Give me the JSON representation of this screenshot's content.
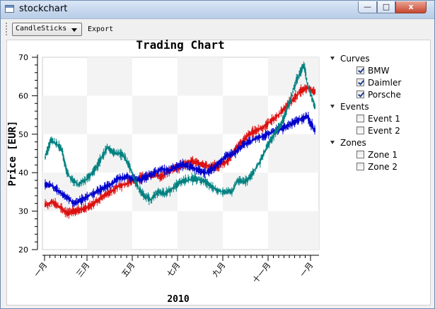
{
  "window": {
    "title": "stockchart"
  },
  "window_buttons": {
    "minimize": "—",
    "maximize": "□",
    "close": "x"
  },
  "toolbar": {
    "combo_value": "CandleSticks",
    "export_label": "Export"
  },
  "legend": {
    "groups": [
      {
        "label": "Curves",
        "items": [
          {
            "label": "BMW",
            "checked": true
          },
          {
            "label": "Daimler",
            "checked": true
          },
          {
            "label": "Porsche",
            "checked": true
          }
        ]
      },
      {
        "label": "Events",
        "items": [
          {
            "label": "Event 1",
            "checked": false
          },
          {
            "label": "Event 2",
            "checked": false
          }
        ]
      },
      {
        "label": "Zones",
        "items": [
          {
            "label": "Zone 1",
            "checked": false
          },
          {
            "label": "Zone 2",
            "checked": false
          }
        ]
      }
    ]
  },
  "chart_data": {
    "type": "candlestick",
    "title": "Trading Chart",
    "ylabel": "Price [EUR]",
    "xlabel": "2010",
    "ylim": [
      20,
      70
    ],
    "yticks": [
      20,
      30,
      40,
      50,
      60,
      70
    ],
    "xticks": [
      "一月",
      "三月",
      "五月",
      "七月",
      "九月",
      "十一月",
      "一月"
    ],
    "grid": "checkerboard",
    "series": [
      {
        "name": "BMW",
        "color": "#dd1111",
        "points": [
          [
            0,
            31.5
          ],
          [
            4,
            32.5
          ],
          [
            8,
            31
          ],
          [
            12,
            29.5
          ],
          [
            16,
            30
          ],
          [
            20,
            30.5
          ],
          [
            24,
            31
          ],
          [
            28,
            32.5
          ],
          [
            32,
            34
          ],
          [
            36,
            35
          ],
          [
            40,
            36.5
          ],
          [
            44,
            37
          ],
          [
            48,
            38
          ],
          [
            52,
            38.5
          ],
          [
            56,
            39
          ],
          [
            60,
            39.5
          ],
          [
            64,
            39
          ],
          [
            68,
            40.5
          ],
          [
            72,
            41
          ],
          [
            76,
            42
          ],
          [
            80,
            43
          ],
          [
            84,
            42.5
          ],
          [
            88,
            42
          ],
          [
            92,
            41.5
          ],
          [
            96,
            42
          ],
          [
            100,
            43
          ],
          [
            104,
            46
          ],
          [
            108,
            48
          ],
          [
            112,
            50
          ],
          [
            116,
            51
          ],
          [
            120,
            52
          ],
          [
            124,
            53.5
          ],
          [
            128,
            55
          ],
          [
            132,
            57
          ],
          [
            136,
            59
          ],
          [
            140,
            61
          ],
          [
            144,
            62
          ],
          [
            148,
            61
          ]
        ]
      },
      {
        "name": "Daimler",
        "color": "#0000cc",
        "points": [
          [
            0,
            37
          ],
          [
            4,
            36.5
          ],
          [
            8,
            35
          ],
          [
            12,
            33.5
          ],
          [
            16,
            32
          ],
          [
            20,
            33
          ],
          [
            24,
            34
          ],
          [
            28,
            35
          ],
          [
            32,
            36
          ],
          [
            36,
            37
          ],
          [
            40,
            38.5
          ],
          [
            44,
            39
          ],
          [
            48,
            38.5
          ],
          [
            52,
            38
          ],
          [
            56,
            39
          ],
          [
            60,
            40
          ],
          [
            64,
            41
          ],
          [
            68,
            40.5
          ],
          [
            72,
            41.5
          ],
          [
            76,
            42
          ],
          [
            80,
            41.5
          ],
          [
            84,
            40.5
          ],
          [
            88,
            40
          ],
          [
            92,
            41
          ],
          [
            96,
            43
          ],
          [
            100,
            44.5
          ],
          [
            104,
            45
          ],
          [
            108,
            47
          ],
          [
            112,
            48
          ],
          [
            116,
            49
          ],
          [
            120,
            49.5
          ],
          [
            124,
            50.5
          ],
          [
            128,
            51
          ],
          [
            132,
            52
          ],
          [
            136,
            53
          ],
          [
            140,
            54
          ],
          [
            144,
            54.5
          ],
          [
            148,
            51
          ]
        ]
      },
      {
        "name": "Porsche",
        "color": "#008080",
        "points": [
          [
            0,
            44
          ],
          [
            3,
            48.5
          ],
          [
            6,
            47.5
          ],
          [
            9,
            46
          ],
          [
            12,
            40
          ],
          [
            15,
            38
          ],
          [
            18,
            37
          ],
          [
            22,
            38
          ],
          [
            26,
            40
          ],
          [
            30,
            43
          ],
          [
            34,
            46.5
          ],
          [
            38,
            45
          ],
          [
            42,
            45
          ],
          [
            46,
            42
          ],
          [
            50,
            37
          ],
          [
            54,
            34
          ],
          [
            58,
            33
          ],
          [
            62,
            35
          ],
          [
            66,
            34.5
          ],
          [
            70,
            36
          ],
          [
            74,
            37.5
          ],
          [
            78,
            38
          ],
          [
            82,
            38.5
          ],
          [
            86,
            38
          ],
          [
            90,
            37
          ],
          [
            94,
            35.5
          ],
          [
            98,
            35
          ],
          [
            102,
            35
          ],
          [
            106,
            38
          ],
          [
            110,
            37.5
          ],
          [
            114,
            40
          ],
          [
            118,
            43
          ],
          [
            122,
            47
          ],
          [
            126,
            50
          ],
          [
            130,
            53
          ],
          [
            134,
            58
          ],
          [
            138,
            64
          ],
          [
            142,
            68
          ],
          [
            144,
            63
          ],
          [
            148,
            57
          ]
        ]
      }
    ]
  }
}
